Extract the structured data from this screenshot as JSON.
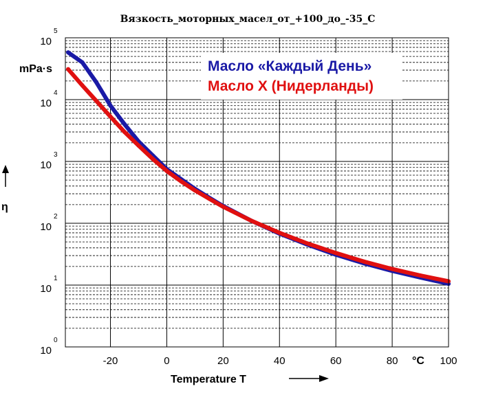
{
  "chart_data": {
    "type": "line",
    "title": "Вязкость_моторных_масел_от_+100_до_-35_C",
    "xlabel": "Temperature T",
    "x_unit": "°C",
    "ylabel": "η",
    "y_unit": "mPa·s",
    "xlim": [
      -36,
      100
    ],
    "ylim": [
      1,
      100000
    ],
    "yscale": "log",
    "x_ticks": [
      -20,
      0,
      20,
      40,
      60,
      80,
      100
    ],
    "y_ticks": [
      {
        "value": 1,
        "base": "10",
        "exp": "0"
      },
      {
        "value": 10,
        "base": "10",
        "exp": "1"
      },
      {
        "value": 100,
        "base": "10",
        "exp": "2"
      },
      {
        "value": 1000,
        "base": "10",
        "exp": "3"
      },
      {
        "value": 10000,
        "base": "10",
        "exp": "4"
      },
      {
        "value": 100000,
        "base": "10",
        "exp": "5"
      }
    ],
    "grid": true,
    "legend_position": "top-right",
    "series": [
      {
        "name": "Масло «Каждый День»",
        "color": "#1a1aa6",
        "points": [
          [
            -35,
            58000
          ],
          [
            -30,
            40000
          ],
          [
            -25,
            19000
          ],
          [
            -20,
            8000
          ],
          [
            -15,
            4000
          ],
          [
            -10,
            2100
          ],
          [
            -5,
            1250
          ],
          [
            0,
            750
          ],
          [
            5,
            520
          ],
          [
            10,
            360
          ],
          [
            15,
            260
          ],
          [
            20,
            190
          ],
          [
            30,
            110
          ],
          [
            40,
            68
          ],
          [
            50,
            45
          ],
          [
            60,
            31
          ],
          [
            70,
            22.5
          ],
          [
            80,
            17
          ],
          [
            90,
            13.3
          ],
          [
            100,
            10.5
          ]
        ]
      },
      {
        "name": "Масло X (Нидерланды)",
        "color": "#e01010",
        "points": [
          [
            -35,
            31000
          ],
          [
            -30,
            17000
          ],
          [
            -25,
            9500
          ],
          [
            -20,
            5300
          ],
          [
            -15,
            3000
          ],
          [
            -10,
            1800
          ],
          [
            -5,
            1100
          ],
          [
            0,
            700
          ],
          [
            5,
            480
          ],
          [
            10,
            340
          ],
          [
            15,
            250
          ],
          [
            20,
            185
          ],
          [
            30,
            110
          ],
          [
            40,
            70
          ],
          [
            50,
            47
          ],
          [
            60,
            33
          ],
          [
            70,
            24
          ],
          [
            80,
            18.2
          ],
          [
            90,
            14.3
          ],
          [
            100,
            11.5
          ]
        ]
      }
    ]
  }
}
